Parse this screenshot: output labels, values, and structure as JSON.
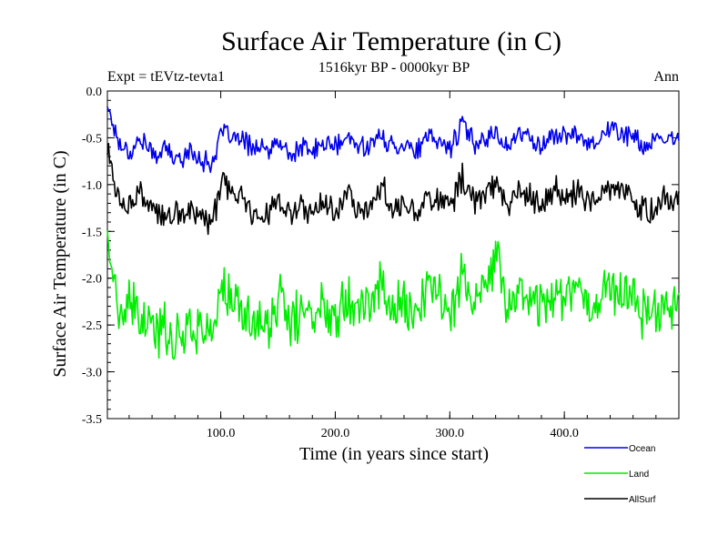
{
  "chart_data": {
    "type": "line",
    "title": "Surface Air Temperature (in C)",
    "subtitle": "1516kyr BP - 0000kyr BP",
    "annotation_left": "Expt = tEVtz-tevta1",
    "annotation_right": "Ann",
    "xlabel": "Time (in years since start)",
    "ylabel": "Surface Air Temperature (in C)",
    "xlim": [
      1,
      500
    ],
    "ylim": [
      -3.5,
      0.0
    ],
    "xticks": [
      100,
      200,
      300,
      400
    ],
    "xtick_labels": [
      "100.0",
      "200.0",
      "300.0",
      "400.0"
    ],
    "yticks": [
      0.0,
      -0.5,
      -1.0,
      -1.5,
      -2.0,
      -2.5,
      -3.0,
      -3.5
    ],
    "ytick_labels": [
      "0.0",
      "-0.5",
      "-1.0",
      "-1.5",
      "-2.0",
      "-2.5",
      "-3.0",
      "-3.5"
    ],
    "legend_position": "bottom-right, outside plot",
    "x": [
      1,
      11,
      21,
      31,
      41,
      51,
      61,
      71,
      81,
      91,
      101,
      111,
      121,
      131,
      141,
      151,
      161,
      171,
      181,
      191,
      201,
      211,
      221,
      231,
      241,
      251,
      261,
      271,
      281,
      291,
      301,
      311,
      321,
      331,
      341,
      351,
      361,
      371,
      381,
      391,
      401,
      411,
      421,
      431,
      441,
      451,
      461,
      471,
      481,
      491,
      500
    ],
    "series": [
      {
        "name": "Ocean",
        "color": "#0000ee",
        "values": [
          -0.15,
          -0.55,
          -0.65,
          -0.5,
          -0.7,
          -0.6,
          -0.75,
          -0.65,
          -0.7,
          -0.8,
          -0.45,
          -0.5,
          -0.55,
          -0.6,
          -0.65,
          -0.55,
          -0.7,
          -0.6,
          -0.65,
          -0.55,
          -0.6,
          -0.5,
          -0.6,
          -0.55,
          -0.5,
          -0.6,
          -0.55,
          -0.65,
          -0.5,
          -0.55,
          -0.6,
          -0.35,
          -0.55,
          -0.5,
          -0.45,
          -0.6,
          -0.45,
          -0.5,
          -0.6,
          -0.45,
          -0.5,
          -0.45,
          -0.55,
          -0.5,
          -0.4,
          -0.45,
          -0.5,
          -0.6,
          -0.55,
          -0.5,
          -0.55
        ]
      },
      {
        "name": "Land",
        "color": "#00ee00",
        "values": [
          -1.5,
          -2.45,
          -2.3,
          -2.45,
          -2.6,
          -2.5,
          -2.7,
          -2.45,
          -2.55,
          -2.6,
          -2.1,
          -2.3,
          -2.4,
          -2.45,
          -2.55,
          -2.2,
          -2.5,
          -2.35,
          -2.4,
          -2.3,
          -2.35,
          -2.15,
          -2.3,
          -2.25,
          -2.05,
          -2.35,
          -2.25,
          -2.4,
          -2.1,
          -2.2,
          -2.3,
          -1.95,
          -2.3,
          -2.15,
          -1.75,
          -2.35,
          -2.1,
          -2.2,
          -2.3,
          -2.1,
          -2.2,
          -2.05,
          -2.3,
          -2.2,
          -2.05,
          -2.15,
          -2.25,
          -2.4,
          -2.3,
          -2.25,
          -2.3
        ]
      },
      {
        "name": "AllSurf",
        "color": "#000000",
        "values": [
          -0.6,
          -1.2,
          -1.2,
          -1.1,
          -1.3,
          -1.35,
          -1.35,
          -1.25,
          -1.3,
          -1.45,
          -1.0,
          -1.1,
          -1.2,
          -1.3,
          -1.3,
          -1.15,
          -1.35,
          -1.25,
          -1.3,
          -1.2,
          -1.25,
          -1.1,
          -1.25,
          -1.2,
          -1.05,
          -1.25,
          -1.2,
          -1.3,
          -1.1,
          -1.15,
          -1.25,
          -0.9,
          -1.2,
          -1.1,
          -1.0,
          -1.25,
          -1.05,
          -1.15,
          -1.25,
          -1.05,
          -1.15,
          -1.05,
          -1.2,
          -1.15,
          -1.0,
          -1.1,
          -1.15,
          -1.3,
          -1.2,
          -1.15,
          -1.2
        ]
      }
    ]
  }
}
